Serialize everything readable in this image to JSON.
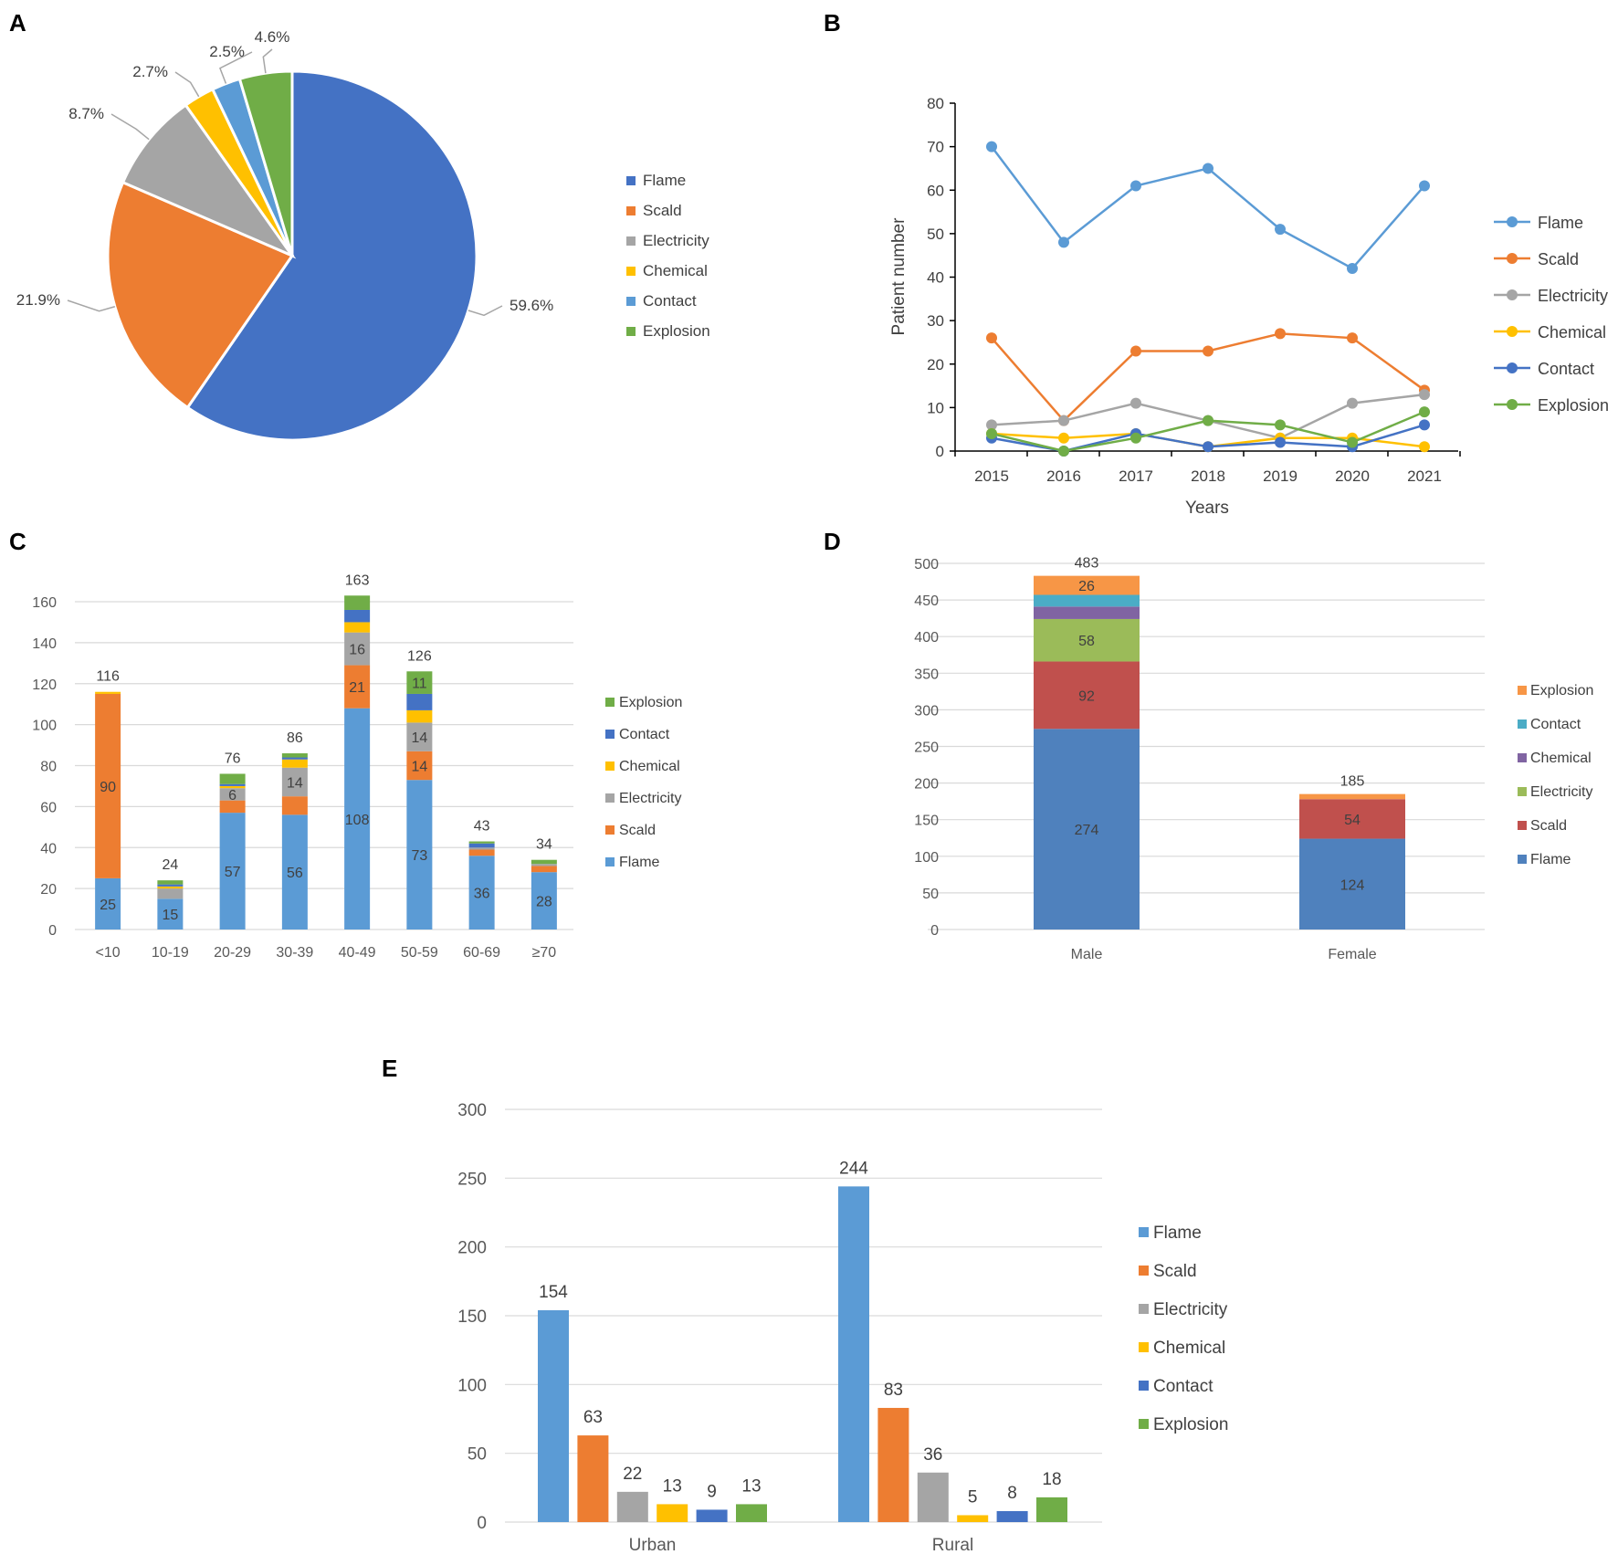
{
  "panels": {
    "a": "A",
    "b": "B",
    "c": "C",
    "d": "D",
    "e": "E"
  },
  "colors": {
    "flame": "#4472C4",
    "scald": "#ED7D31",
    "electricity": "#A5A5A5",
    "chemical": "#FFC000",
    "contact": "#5B9BD5",
    "explosion": "#70AD47",
    "flame_light": "#5B9BD5",
    "contact_dark": "#4472C4",
    "d_flame": "#4F81BD",
    "d_scald": "#C0504D",
    "d_electricity": "#9BBB59",
    "d_chemical": "#8064A2",
    "d_contact": "#4BACC6",
    "d_explosion": "#F79646"
  },
  "chart_data": [
    {
      "id": "A",
      "type": "pie",
      "labels": [
        "Flame",
        "Scald",
        "Electricity",
        "Chemical",
        "Contact",
        "Explosion"
      ],
      "values": [
        59.6,
        21.9,
        8.7,
        2.7,
        2.5,
        4.6
      ],
      "value_labels": [
        "59.6%",
        "21.9%",
        "8.7%",
        "2.7%",
        "2.5%",
        "4.6%"
      ],
      "legend": [
        "Flame",
        "Scald",
        "Electricity",
        "Chemical",
        "Contact",
        "Explosion"
      ],
      "legend_position": "right"
    },
    {
      "id": "B",
      "type": "line",
      "x": [
        2015,
        2016,
        2017,
        2018,
        2019,
        2020,
        2021
      ],
      "x_labels": [
        "2015",
        "2016",
        "2017",
        "2018",
        "2019",
        "2020",
        "2021"
      ],
      "series": [
        {
          "name": "Flame",
          "values": [
            70,
            48,
            61,
            65,
            51,
            42,
            61
          ]
        },
        {
          "name": "Scald",
          "values": [
            26,
            7,
            23,
            23,
            27,
            26,
            14
          ]
        },
        {
          "name": "Electricity",
          "values": [
            6,
            7,
            11,
            7,
            3,
            11,
            13
          ]
        },
        {
          "name": "Chemical",
          "values": [
            4,
            3,
            4,
            1,
            3,
            3,
            1
          ]
        },
        {
          "name": "Contact",
          "values": [
            3,
            0,
            4,
            1,
            2,
            1,
            6
          ]
        },
        {
          "name": "Explosion",
          "values": [
            4,
            0,
            3,
            7,
            6,
            2,
            9
          ]
        }
      ],
      "xlabel": "Years",
      "ylabel": "Patient number",
      "ylim": [
        0,
        80
      ],
      "yticks": [
        "0",
        "10",
        "20",
        "30",
        "40",
        "50",
        "60",
        "70",
        "80"
      ],
      "legend_position": "right"
    },
    {
      "id": "C",
      "type": "bar",
      "stacked": true,
      "categories": [
        "<10",
        "10-19",
        "20-29",
        "30-39",
        "40-49",
        "50-59",
        "60-69",
        "≥70"
      ],
      "series": [
        {
          "name": "Flame",
          "values": [
            25,
            15,
            57,
            56,
            108,
            73,
            36,
            28
          ]
        },
        {
          "name": "Scald",
          "values": [
            90,
            0,
            6,
            9,
            21,
            14,
            3,
            3
          ]
        },
        {
          "name": "Electricity",
          "values": [
            0,
            5,
            6,
            14,
            16,
            14,
            1,
            1
          ]
        },
        {
          "name": "Chemical",
          "values": [
            1,
            1,
            1,
            4,
            5,
            6,
            0,
            0
          ]
        },
        {
          "name": "Contact",
          "values": [
            0,
            1,
            1,
            1,
            6,
            8,
            2,
            0
          ]
        },
        {
          "name": "Explosion",
          "values": [
            0,
            2,
            5,
            2,
            7,
            11,
            1,
            2
          ]
        }
      ],
      "segment_labels": [
        {
          "cat": 0,
          "series": 0,
          "text": "25"
        },
        {
          "cat": 0,
          "series": 1,
          "text": "90"
        },
        {
          "cat": 1,
          "series": 0,
          "text": "15"
        },
        {
          "cat": 2,
          "series": 0,
          "text": "57"
        },
        {
          "cat": 2,
          "series": 2,
          "text": "6"
        },
        {
          "cat": 3,
          "series": 0,
          "text": "56"
        },
        {
          "cat": 3,
          "series": 2,
          "text": "14"
        },
        {
          "cat": 4,
          "series": 0,
          "text": "108"
        },
        {
          "cat": 4,
          "series": 1,
          "text": "21"
        },
        {
          "cat": 4,
          "series": 2,
          "text": "16"
        },
        {
          "cat": 5,
          "series": 0,
          "text": "73"
        },
        {
          "cat": 5,
          "series": 1,
          "text": "14"
        },
        {
          "cat": 5,
          "series": 2,
          "text": "14"
        },
        {
          "cat": 5,
          "series": 5,
          "text": "11"
        },
        {
          "cat": 6,
          "series": 0,
          "text": "36"
        },
        {
          "cat": 7,
          "series": 0,
          "text": "28"
        }
      ],
      "totals": [
        "116",
        "24",
        "76",
        "86",
        "163",
        "126",
        "43",
        "34"
      ],
      "ylim": [
        0,
        160
      ],
      "yticks": [
        "0",
        "20",
        "40",
        "60",
        "80",
        "100",
        "120",
        "140",
        "160"
      ],
      "legend": [
        "Explosion",
        "Contact",
        "Chemical",
        "Electricity",
        "Scald",
        "Flame"
      ],
      "legend_position": "right"
    },
    {
      "id": "D",
      "type": "bar",
      "stacked": true,
      "categories": [
        "Male",
        "Female"
      ],
      "series": [
        {
          "name": "Flame",
          "values": [
            274,
            124
          ]
        },
        {
          "name": "Scald",
          "values": [
            92,
            54
          ]
        },
        {
          "name": "Electricity",
          "values": [
            58,
            0
          ]
        },
        {
          "name": "Chemical",
          "values": [
            17,
            0
          ]
        },
        {
          "name": "Contact",
          "values": [
            16,
            0
          ]
        },
        {
          "name": "Explosion",
          "values": [
            26,
            7
          ]
        }
      ],
      "segment_labels": [
        {
          "cat": 0,
          "series": 0,
          "text": "274"
        },
        {
          "cat": 0,
          "series": 1,
          "text": "92"
        },
        {
          "cat": 0,
          "series": 2,
          "text": "58"
        },
        {
          "cat": 0,
          "series": 5,
          "text": "26"
        },
        {
          "cat": 1,
          "series": 0,
          "text": "124"
        },
        {
          "cat": 1,
          "series": 1,
          "text": "54"
        }
      ],
      "totals": [
        "483",
        "185"
      ],
      "ylim": [
        0,
        500
      ],
      "yticks": [
        "0",
        "50",
        "100",
        "150",
        "200",
        "250",
        "300",
        "350",
        "400",
        "450",
        "500"
      ],
      "legend": [
        "Explosion",
        "Contact",
        "Chemical",
        "Electricity",
        "Scald",
        "Flame"
      ],
      "legend_position": "right"
    },
    {
      "id": "E",
      "type": "bar",
      "stacked": false,
      "categories": [
        "Urban",
        "Rural"
      ],
      "series": [
        {
          "name": "Flame",
          "values": [
            154,
            244
          ]
        },
        {
          "name": "Scald",
          "values": [
            63,
            83
          ]
        },
        {
          "name": "Electricity",
          "values": [
            22,
            36
          ]
        },
        {
          "name": "Chemical",
          "values": [
            13,
            5
          ]
        },
        {
          "name": "Contact",
          "values": [
            9,
            8
          ]
        },
        {
          "name": "Explosion",
          "values": [
            13,
            18
          ]
        }
      ],
      "value_labels": [
        [
          "154",
          "63",
          "22",
          "13",
          "9",
          "13"
        ],
        [
          "244",
          "83",
          "36",
          "5",
          "8",
          "18"
        ]
      ],
      "ylim": [
        0,
        300
      ],
      "yticks": [
        "0",
        "50",
        "100",
        "150",
        "200",
        "250",
        "300"
      ],
      "legend": [
        "Flame",
        "Scald",
        "Electricity",
        "Chemical",
        "Contact",
        "Explosion"
      ],
      "legend_position": "right"
    }
  ]
}
